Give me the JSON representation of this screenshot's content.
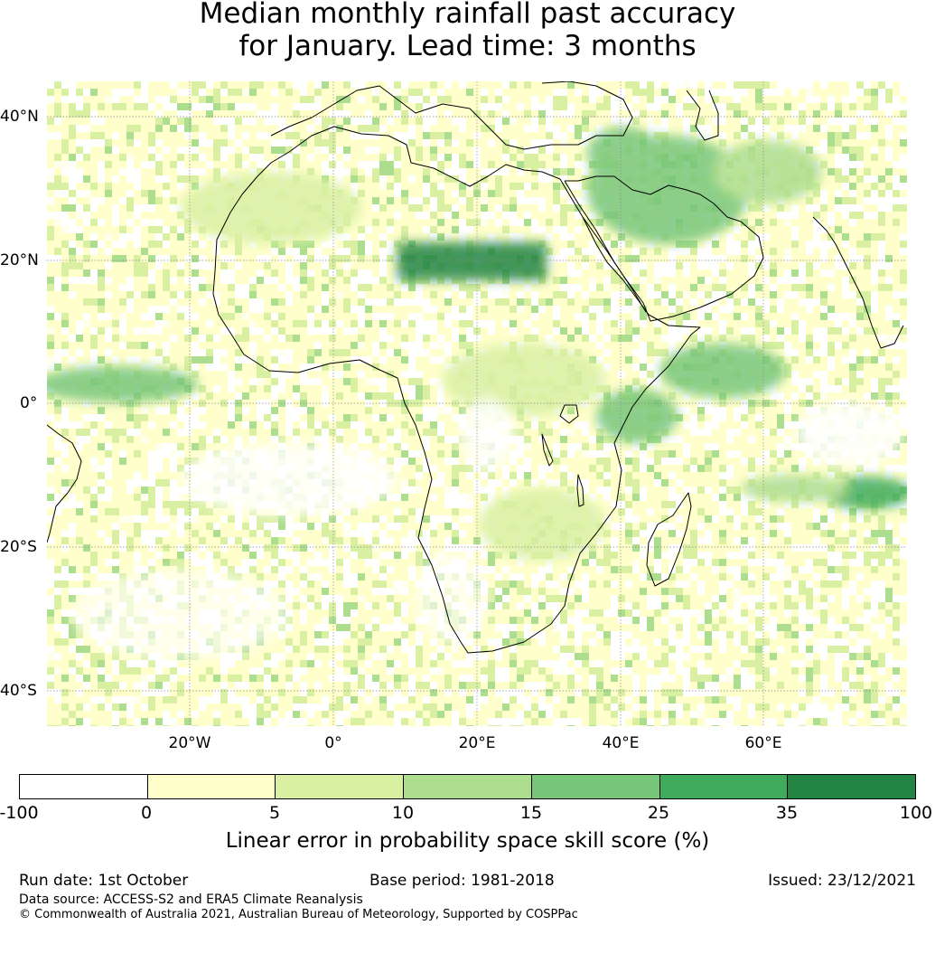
{
  "title_line1": "Median monthly rainfall past accuracy",
  "title_line2": "for January. Lead time: 3 months",
  "map": {
    "lat_labels": [
      "40°N",
      "20°N",
      "0°",
      "20°S",
      "40°S"
    ],
    "lon_labels": [
      "20°W",
      "0°",
      "20°E",
      "40°E",
      "60°E"
    ],
    "region": "Africa and Middle East",
    "lon_range": [
      -40,
      80
    ],
    "lat_range": [
      -45,
      45
    ],
    "grid": "dotted gridlines every 20°"
  },
  "colorbar": {
    "ticks": [
      "-100",
      "0",
      "5",
      "10",
      "15",
      "25",
      "35",
      "100"
    ],
    "colors": [
      "#ffffff",
      "#ffffcc",
      "#d9f0a3",
      "#addd8e",
      "#78c679",
      "#41ab5d",
      "#238443"
    ],
    "label": "Linear error in probability space skill score (%)"
  },
  "footer": {
    "run_date": "Run date: 1st October",
    "base_period": "Base period: 1981-2018",
    "issued": "Issued: 23/12/2021",
    "data_source": "Data source: ACCESS-S2 and ERA5 Climate Reanalysis",
    "copyright": "© Commonwealth of Australia 2021, Australian Bureau of Meteorology, Supported by COSPPac"
  }
}
